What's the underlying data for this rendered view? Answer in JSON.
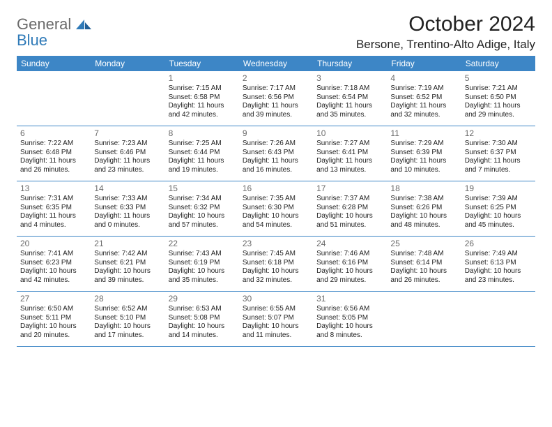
{
  "brand": {
    "name_gray": "General",
    "name_blue": "Blue"
  },
  "title": "October 2024",
  "location": "Bersone, Trentino-Alto Adige, Italy",
  "colors": {
    "header_bg": "#3d86c6",
    "header_text": "#ffffff",
    "rule": "#3d86c6",
    "daynum": "#6a6a6a",
    "body_text": "#222222",
    "logo_gray": "#6a6a6a",
    "logo_blue": "#2f7ab8"
  },
  "day_headers": [
    "Sunday",
    "Monday",
    "Tuesday",
    "Wednesday",
    "Thursday",
    "Friday",
    "Saturday"
  ],
  "weeks": [
    [
      {
        "n": "",
        "sr": "",
        "ss": "",
        "dl": ""
      },
      {
        "n": "",
        "sr": "",
        "ss": "",
        "dl": ""
      },
      {
        "n": "1",
        "sr": "Sunrise: 7:15 AM",
        "ss": "Sunset: 6:58 PM",
        "dl": "Daylight: 11 hours and 42 minutes."
      },
      {
        "n": "2",
        "sr": "Sunrise: 7:17 AM",
        "ss": "Sunset: 6:56 PM",
        "dl": "Daylight: 11 hours and 39 minutes."
      },
      {
        "n": "3",
        "sr": "Sunrise: 7:18 AM",
        "ss": "Sunset: 6:54 PM",
        "dl": "Daylight: 11 hours and 35 minutes."
      },
      {
        "n": "4",
        "sr": "Sunrise: 7:19 AM",
        "ss": "Sunset: 6:52 PM",
        "dl": "Daylight: 11 hours and 32 minutes."
      },
      {
        "n": "5",
        "sr": "Sunrise: 7:21 AM",
        "ss": "Sunset: 6:50 PM",
        "dl": "Daylight: 11 hours and 29 minutes."
      }
    ],
    [
      {
        "n": "6",
        "sr": "Sunrise: 7:22 AM",
        "ss": "Sunset: 6:48 PM",
        "dl": "Daylight: 11 hours and 26 minutes."
      },
      {
        "n": "7",
        "sr": "Sunrise: 7:23 AM",
        "ss": "Sunset: 6:46 PM",
        "dl": "Daylight: 11 hours and 23 minutes."
      },
      {
        "n": "8",
        "sr": "Sunrise: 7:25 AM",
        "ss": "Sunset: 6:44 PM",
        "dl": "Daylight: 11 hours and 19 minutes."
      },
      {
        "n": "9",
        "sr": "Sunrise: 7:26 AM",
        "ss": "Sunset: 6:43 PM",
        "dl": "Daylight: 11 hours and 16 minutes."
      },
      {
        "n": "10",
        "sr": "Sunrise: 7:27 AM",
        "ss": "Sunset: 6:41 PM",
        "dl": "Daylight: 11 hours and 13 minutes."
      },
      {
        "n": "11",
        "sr": "Sunrise: 7:29 AM",
        "ss": "Sunset: 6:39 PM",
        "dl": "Daylight: 11 hours and 10 minutes."
      },
      {
        "n": "12",
        "sr": "Sunrise: 7:30 AM",
        "ss": "Sunset: 6:37 PM",
        "dl": "Daylight: 11 hours and 7 minutes."
      }
    ],
    [
      {
        "n": "13",
        "sr": "Sunrise: 7:31 AM",
        "ss": "Sunset: 6:35 PM",
        "dl": "Daylight: 11 hours and 4 minutes."
      },
      {
        "n": "14",
        "sr": "Sunrise: 7:33 AM",
        "ss": "Sunset: 6:33 PM",
        "dl": "Daylight: 11 hours and 0 minutes."
      },
      {
        "n": "15",
        "sr": "Sunrise: 7:34 AM",
        "ss": "Sunset: 6:32 PM",
        "dl": "Daylight: 10 hours and 57 minutes."
      },
      {
        "n": "16",
        "sr": "Sunrise: 7:35 AM",
        "ss": "Sunset: 6:30 PM",
        "dl": "Daylight: 10 hours and 54 minutes."
      },
      {
        "n": "17",
        "sr": "Sunrise: 7:37 AM",
        "ss": "Sunset: 6:28 PM",
        "dl": "Daylight: 10 hours and 51 minutes."
      },
      {
        "n": "18",
        "sr": "Sunrise: 7:38 AM",
        "ss": "Sunset: 6:26 PM",
        "dl": "Daylight: 10 hours and 48 minutes."
      },
      {
        "n": "19",
        "sr": "Sunrise: 7:39 AM",
        "ss": "Sunset: 6:25 PM",
        "dl": "Daylight: 10 hours and 45 minutes."
      }
    ],
    [
      {
        "n": "20",
        "sr": "Sunrise: 7:41 AM",
        "ss": "Sunset: 6:23 PM",
        "dl": "Daylight: 10 hours and 42 minutes."
      },
      {
        "n": "21",
        "sr": "Sunrise: 7:42 AM",
        "ss": "Sunset: 6:21 PM",
        "dl": "Daylight: 10 hours and 39 minutes."
      },
      {
        "n": "22",
        "sr": "Sunrise: 7:43 AM",
        "ss": "Sunset: 6:19 PM",
        "dl": "Daylight: 10 hours and 35 minutes."
      },
      {
        "n": "23",
        "sr": "Sunrise: 7:45 AM",
        "ss": "Sunset: 6:18 PM",
        "dl": "Daylight: 10 hours and 32 minutes."
      },
      {
        "n": "24",
        "sr": "Sunrise: 7:46 AM",
        "ss": "Sunset: 6:16 PM",
        "dl": "Daylight: 10 hours and 29 minutes."
      },
      {
        "n": "25",
        "sr": "Sunrise: 7:48 AM",
        "ss": "Sunset: 6:14 PM",
        "dl": "Daylight: 10 hours and 26 minutes."
      },
      {
        "n": "26",
        "sr": "Sunrise: 7:49 AM",
        "ss": "Sunset: 6:13 PM",
        "dl": "Daylight: 10 hours and 23 minutes."
      }
    ],
    [
      {
        "n": "27",
        "sr": "Sunrise: 6:50 AM",
        "ss": "Sunset: 5:11 PM",
        "dl": "Daylight: 10 hours and 20 minutes."
      },
      {
        "n": "28",
        "sr": "Sunrise: 6:52 AM",
        "ss": "Sunset: 5:10 PM",
        "dl": "Daylight: 10 hours and 17 minutes."
      },
      {
        "n": "29",
        "sr": "Sunrise: 6:53 AM",
        "ss": "Sunset: 5:08 PM",
        "dl": "Daylight: 10 hours and 14 minutes."
      },
      {
        "n": "30",
        "sr": "Sunrise: 6:55 AM",
        "ss": "Sunset: 5:07 PM",
        "dl": "Daylight: 10 hours and 11 minutes."
      },
      {
        "n": "31",
        "sr": "Sunrise: 6:56 AM",
        "ss": "Sunset: 5:05 PM",
        "dl": "Daylight: 10 hours and 8 minutes."
      },
      {
        "n": "",
        "sr": "",
        "ss": "",
        "dl": ""
      },
      {
        "n": "",
        "sr": "",
        "ss": "",
        "dl": ""
      }
    ]
  ]
}
